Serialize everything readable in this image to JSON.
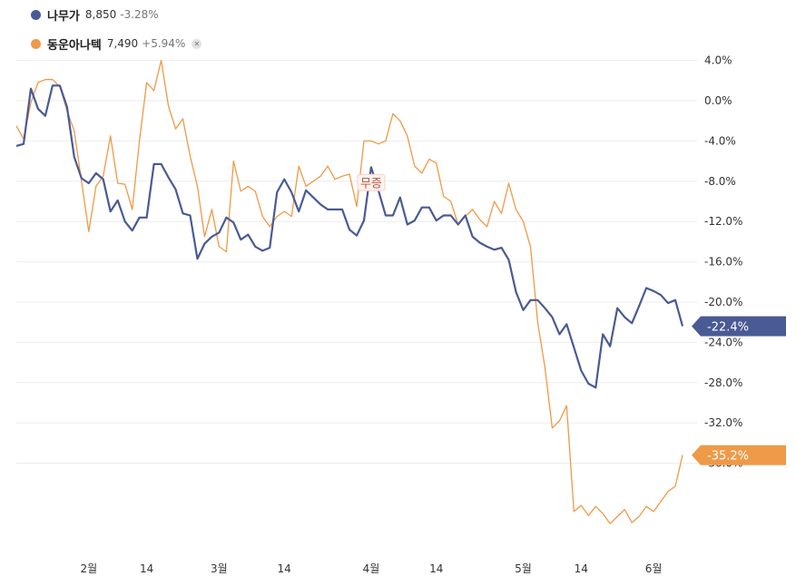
{
  "legend": {
    "items": [
      {
        "name": "나무가",
        "value": "8,850",
        "change": "-3.28%",
        "color": "#4a5a94",
        "removable": false
      },
      {
        "name": "동운아나텍",
        "value": "7,490",
        "change": "+5.94%",
        "color": "#ee9a48",
        "removable": true
      }
    ],
    "remove_icon": "close-icon"
  },
  "chart_data": {
    "type": "line",
    "y_unit": "%",
    "ylim": [
      -44,
      5
    ],
    "y_ticks": [
      4,
      0,
      -4,
      -8,
      -12,
      -16,
      -20,
      -24,
      -28,
      -32,
      -36
    ],
    "y_tick_labels": [
      "4.0%",
      "0.0%",
      "-4.0%",
      "-8.0%",
      "-12.0%",
      "-16.0%",
      "-20.0%",
      "-24.0%",
      "-28.0%",
      "-32.0%",
      "-36.0%"
    ],
    "x_tick_labels": [
      {
        "label": "2월",
        "index": 10
      },
      {
        "label": "14",
        "index": 18
      },
      {
        "label": "3월",
        "index": 28
      },
      {
        "label": "14",
        "index": 37
      },
      {
        "label": "4월",
        "index": 49
      },
      {
        "label": "14",
        "index": 58
      },
      {
        "label": "5월",
        "index": 70
      },
      {
        "label": "14",
        "index": 78
      },
      {
        "label": "6월",
        "index": 88
      }
    ],
    "series": [
      {
        "name": "나무가",
        "color": "#4a5a94",
        "last_label": "-22.4%",
        "values": [
          -4.5,
          -4.3,
          1.2,
          -0.8,
          -1.5,
          1.5,
          1.5,
          -0.6,
          -5.6,
          -7.7,
          -8.2,
          -7.2,
          -7.8,
          -11.0,
          -9.9,
          -12.0,
          -12.9,
          -11.6,
          -11.6,
          -6.3,
          -6.3,
          -7.6,
          -8.8,
          -11.2,
          -11.4,
          -15.7,
          -14.2,
          -13.5,
          -13.1,
          -11.6,
          -12.1,
          -13.8,
          -13.3,
          -14.5,
          -14.9,
          -14.6,
          -9.1,
          -7.8,
          -9.1,
          -11.0,
          -8.9,
          -9.6,
          -10.3,
          -10.8,
          -10.8,
          -10.8,
          -12.8,
          -13.4,
          -11.9,
          -6.6,
          -8.9,
          -11.4,
          -11.4,
          -9.6,
          -12.3,
          -11.9,
          -10.6,
          -10.6,
          -11.9,
          -11.4,
          -11.4,
          -12.3,
          -11.4,
          -13.5,
          -14.1,
          -14.5,
          -14.8,
          -14.6,
          -15.8,
          -19.0,
          -20.8,
          -19.8,
          -19.8,
          -20.6,
          -21.5,
          -23.2,
          -22.2,
          -24.5,
          -26.8,
          -28.1,
          -28.5,
          -23.2,
          -24.4,
          -20.6,
          -21.5,
          -22.1,
          -20.4,
          -18.6,
          -18.9,
          -19.3,
          -20.1,
          -19.8,
          -22.4
        ]
      },
      {
        "name": "동운아나텍",
        "color": "#ee9a48",
        "last_label": "-35.2%",
        "values": [
          -2.5,
          -3.8,
          -0.2,
          1.8,
          2.1,
          2.1,
          1.4,
          -1.0,
          -3.0,
          -8.0,
          -13.0,
          -8.5,
          -7.5,
          -3.5,
          -8.2,
          -8.3,
          -10.8,
          -4.0,
          1.8,
          1.0,
          4.0,
          -0.5,
          -2.8,
          -1.8,
          -5.5,
          -8.5,
          -13.5,
          -10.8,
          -14.5,
          -15.0,
          -6.0,
          -9.0,
          -8.5,
          -9.0,
          -11.5,
          -12.5,
          -11.5,
          -11.0,
          -11.5,
          -6.5,
          -8.5,
          -8.0,
          -7.5,
          -6.5,
          -7.8,
          -7.5,
          -7.3,
          -10.5,
          -4.0,
          -4.0,
          -4.3,
          -4.0,
          -1.3,
          -2.0,
          -3.5,
          -6.5,
          -7.2,
          -5.8,
          -6.2,
          -9.5,
          -10.0,
          -12.3,
          -11.5,
          -10.8,
          -11.8,
          -12.5,
          -10.0,
          -11.2,
          -8.2,
          -10.8,
          -12.0,
          -14.5,
          -22.0,
          -26.5,
          -32.5,
          -31.8,
          -30.3,
          -40.8,
          -40.2,
          -41.2,
          -40.3,
          -41.0,
          -42.0,
          -41.3,
          -40.6,
          -41.9,
          -41.3,
          -40.3,
          -40.8,
          -39.8,
          -38.8,
          -38.3,
          -35.2
        ]
      }
    ],
    "annotation": {
      "label": "무증",
      "series": "나무가",
      "index": 49
    }
  }
}
